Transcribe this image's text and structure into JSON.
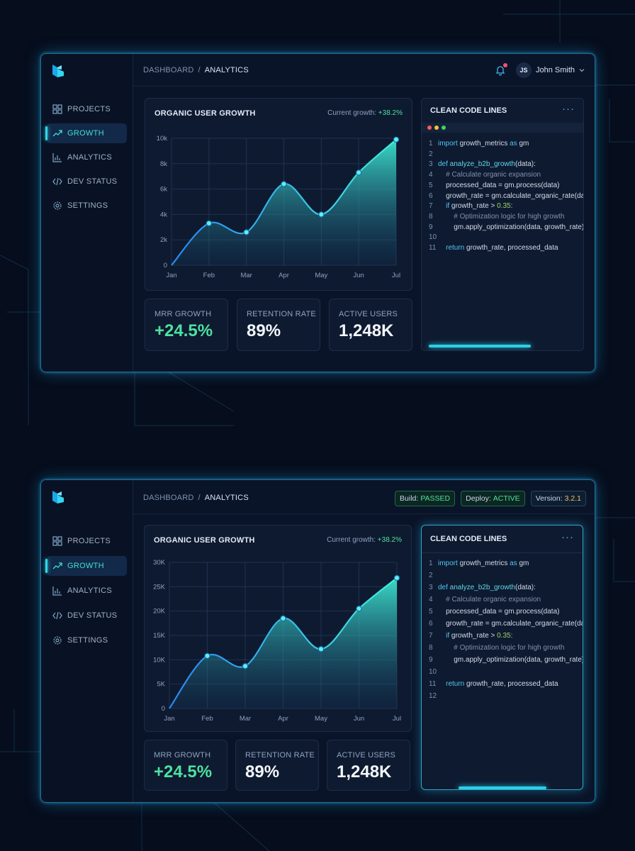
{
  "colors": {
    "accent": "#2fd8e8",
    "positive": "#4ee09a",
    "panel": "#0a1428",
    "card": "#0e1a30",
    "warning_dot": "#ff4d6a"
  },
  "sidebar": {
    "items": [
      {
        "label": "PROJECTS",
        "icon": "grid-icon"
      },
      {
        "label": "GROWTH",
        "icon": "trend-icon",
        "active": true
      },
      {
        "label": "ANALYTICS",
        "icon": "bar-chart-icon"
      },
      {
        "label": "DEV STATUS",
        "icon": "code-icon"
      },
      {
        "label": "SETTINGS",
        "icon": "gear-icon"
      }
    ]
  },
  "panel1": {
    "breadcrumb": {
      "root": "DASHBOARD",
      "sep": "/",
      "current": "ANALYTICS"
    },
    "user": {
      "initials": "JS",
      "name": "John Smith"
    },
    "growth_card": {
      "title": "ORGANIC USER GROWTH",
      "note_label": "Current growth:",
      "note_value": "+38.2%"
    },
    "stats": [
      {
        "label": "MRR GROWTH",
        "value": "+24.5%"
      },
      {
        "label": "RETENTION RATE",
        "value": "89%"
      },
      {
        "label": "ACTIVE USERS",
        "value": "1,248K"
      }
    ],
    "code_card": {
      "title": "CLEAN CODE LINES",
      "more": "···"
    }
  },
  "panel2": {
    "breadcrumb": {
      "root": "DASHBOARD",
      "sep": "/",
      "current": "ANALYTICS"
    },
    "badges": {
      "build_label": "Build:",
      "build_value": "PASSED",
      "deploy_label": "Deploy:",
      "deploy_value": "ACTIVE",
      "version_label": "Version:",
      "version_value": "3.2.1"
    },
    "growth_card": {
      "title": "ORGANIC USER GROWTH",
      "note_label": "Current growth:",
      "note_value": "+38.2%"
    },
    "stats": [
      {
        "label": "MRR GROWTH",
        "value": "+24.5%"
      },
      {
        "label": "RETENTION RATE",
        "value": "89%"
      },
      {
        "label": "ACTIVE USERS",
        "value": "1,248K"
      }
    ],
    "code_card": {
      "title": "CLEAN CODE LINES",
      "more": "···"
    }
  },
  "code_lines_1": [
    "1",
    "2",
    "3",
    "4",
    "5",
    "6",
    "7",
    "8",
    "9",
    "10",
    "11"
  ],
  "code_lines_2": [
    "1",
    "2",
    "3",
    "4",
    "5",
    "6",
    "7",
    "8",
    "9",
    "10",
    "11",
    "12"
  ],
  "code_text": {
    "l1a": "import",
    "l1b": " growth_metrics ",
    "l1c": "as",
    "l1d": " gm",
    "l3a": "def",
    "l3b": " analyze_b2b_growth",
    "l3c": "(data):",
    "l4": "    # Calculate organic expansion",
    "l5": "    processed_data = gm.process(data)",
    "l6a": "    growth_rate = gm.calculate_organic_rate(data)",
    "l7a": "    if",
    "l7b": " growth_rate > ",
    "l7c": "0.35",
    ":": ":",
    "l8": "        # Optimization logic for high growth",
    "l9": "        gm.apply_optimization(data, growth_rate)",
    "l11a": "    return",
    "l11b": " growth_rate, processed_data"
  },
  "chart_data": [
    {
      "type": "area",
      "title": "ORGANIC USER GROWTH",
      "categories": [
        "Jan",
        "Feb",
        "Mar",
        "Apr",
        "May",
        "Jun",
        "Jul"
      ],
      "values": [
        0,
        3300,
        2600,
        6400,
        4000,
        7300,
        9900
      ],
      "yticks": [
        "0",
        "2k",
        "4k",
        "6k",
        "8k",
        "10k"
      ],
      "ylim": [
        0,
        10000
      ],
      "grid": true
    },
    {
      "type": "area",
      "title": "ORGANIC USER GROWTH",
      "categories": [
        "Jan",
        "Feb",
        "Mar",
        "Apr",
        "May",
        "Jun",
        "Jul"
      ],
      "values": [
        0,
        10800,
        8700,
        18500,
        12200,
        20500,
        26800
      ],
      "yticks": [
        "0",
        "5K",
        "10K",
        "15K",
        "20K",
        "25K",
        "30K"
      ],
      "ylim": [
        0,
        30000
      ],
      "grid": true
    }
  ]
}
